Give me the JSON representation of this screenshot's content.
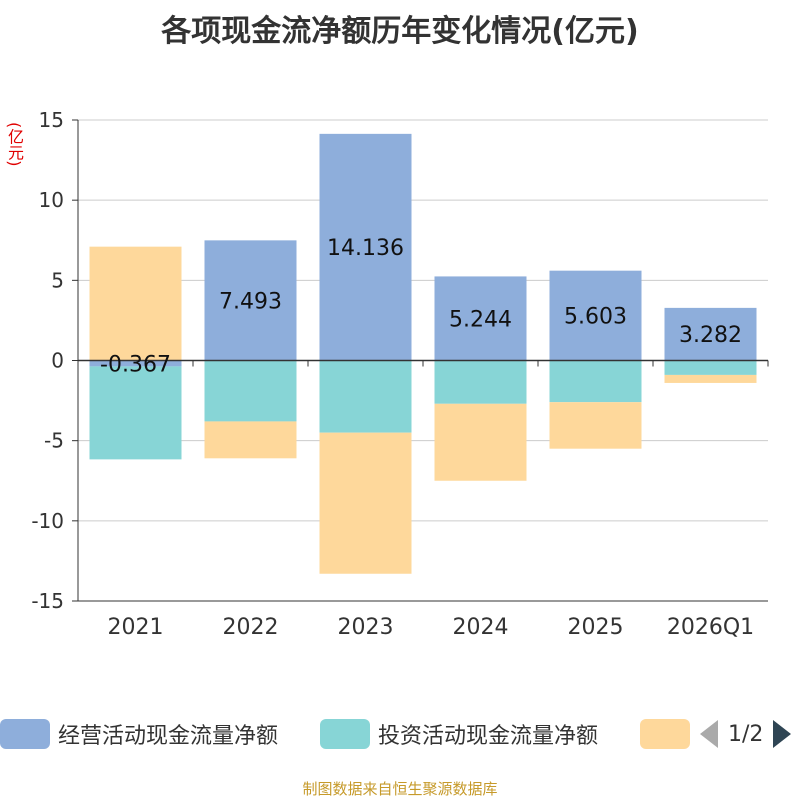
{
  "title": "各项现金流净额历年变化情况(亿元)",
  "unit_label": "(亿元)",
  "footer": "制图数据来自恒生聚源数据库",
  "pager": {
    "text": "1/2"
  },
  "colors": {
    "operating": "#8eaedb",
    "investing": "#87d5d6",
    "financing": "#fed89b",
    "axis": "#333333",
    "grid": "#cccccc"
  },
  "chart_data": {
    "type": "bar",
    "stacked": true,
    "title": "各项现金流净额历年变化情况(亿元)",
    "ylabel": "(亿元)",
    "ylim": [
      -15,
      15
    ],
    "yticks": [
      15,
      10,
      5,
      0,
      -5,
      -10,
      -15
    ],
    "grid": true,
    "categories": [
      "2021",
      "2022",
      "2023",
      "2024",
      "2025",
      "2026Q1"
    ],
    "series": [
      {
        "name": "经营活动现金流量净额",
        "values": [
          -0.367,
          7.493,
          14.136,
          5.244,
          5.603,
          3.282
        ],
        "labels": [
          "-0.367",
          "7.493",
          "14.136",
          "5.244",
          "5.603",
          "3.282"
        ]
      },
      {
        "name": "投资活动现金流量净额",
        "values": [
          -5.8,
          -3.8,
          -4.5,
          -2.7,
          -2.6,
          -0.9
        ]
      },
      {
        "name": "",
        "values": [
          7.1,
          -2.3,
          -8.8,
          -4.8,
          -2.9,
          -0.5
        ]
      }
    ]
  },
  "legend": [
    {
      "label": "经营活动现金流量净额",
      "color_key": "operating"
    },
    {
      "label": "投资活动现金流量净额",
      "color_key": "investing"
    },
    {
      "label": "",
      "color_key": "financing"
    }
  ]
}
